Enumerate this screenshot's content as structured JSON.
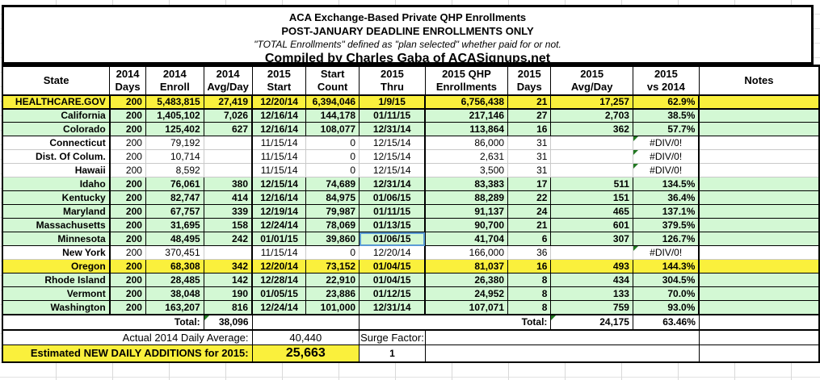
{
  "title": {
    "line1": "ACA Exchange-Based Private QHP Enrollments",
    "line2": "POST-JANUARY DEADLINE ENROLLMENTS ONLY",
    "line3": "\"TOTAL Enrollments\" defined as \"plan selected\" whether paid for or not.",
    "line4": "Compiled by Charles Gaba of ACASignups.net"
  },
  "colors": {
    "row_yellow": "#FAF03C",
    "row_green": "#D3F8D4",
    "error_indicator": "#217821",
    "selection_border": "#5B9BD5"
  },
  "table": {
    "columns": [
      {
        "key": "state",
        "l1": "State",
        "l2": ""
      },
      {
        "key": "2014-days",
        "l1": "2014",
        "l2": "Days"
      },
      {
        "key": "2014-enroll",
        "l1": "2014",
        "l2": "Enroll"
      },
      {
        "key": "2014-avg-day",
        "l1": "2014",
        "l2": "Avg/Day"
      },
      {
        "key": "2015-start",
        "l1": "2015",
        "l2": "Start"
      },
      {
        "key": "start-count",
        "l1": "Start",
        "l2": "Count"
      },
      {
        "key": "2015-thru",
        "l1": "2015",
        "l2": "Thru"
      },
      {
        "key": "2015-qhp-enrollments",
        "l1": "2015 QHP",
        "l2": "Enrollments"
      },
      {
        "key": "2015-days",
        "l1": "2015",
        "l2": "Days"
      },
      {
        "key": "2015-avg-day",
        "l1": "2015",
        "l2": "Avg/Day"
      },
      {
        "key": "2015-vs-2014",
        "l1": "2015",
        "l2": "vs 2014"
      },
      {
        "key": "notes",
        "l1": "Notes",
        "l2": ""
      }
    ],
    "rows": [
      {
        "state": "HEALTHCARE.GOV",
        "d14": "200",
        "e14": "5,483,815",
        "a14": "27,419",
        "s15": "12/20/14",
        "sc": "6,394,046",
        "t15": "1/9/15",
        "q15": "6,756,438",
        "d15": "21",
        "a15": "17,257",
        "vs": "62.9%",
        "notes": "",
        "style": "yellow",
        "pct_bold": false,
        "error": false,
        "selected": false
      },
      {
        "state": "California",
        "d14": "200",
        "e14": "1,405,102",
        "a14": "7,026",
        "s15": "12/16/14",
        "sc": "144,178",
        "t15": "01/11/15",
        "q15": "217,146",
        "d15": "27",
        "a15": "2,703",
        "vs": "38.5%",
        "notes": "",
        "style": "green",
        "pct_bold": true,
        "error": false,
        "selected": false
      },
      {
        "state": "Colorado",
        "d14": "200",
        "e14": "125,402",
        "a14": "627",
        "s15": "12/16/14",
        "sc": "108,077",
        "t15": "12/31/14",
        "q15": "113,864",
        "d15": "16",
        "a15": "362",
        "vs": "57.7%",
        "notes": "",
        "style": "green",
        "pct_bold": false,
        "error": false,
        "selected": false
      },
      {
        "state": "Connecticut",
        "d14": "200",
        "e14": "79,192",
        "a14": "",
        "s15": "11/15/14",
        "sc": "0",
        "t15": "12/15/14",
        "q15": "86,000",
        "d15": "31",
        "a15": "",
        "vs": "#DIV/0!",
        "notes": "",
        "style": "white",
        "pct_bold": false,
        "error": true,
        "selected": false
      },
      {
        "state": "Dist. Of Colum.",
        "d14": "200",
        "e14": "10,714",
        "a14": "",
        "s15": "11/15/14",
        "sc": "0",
        "t15": "12/15/14",
        "q15": "2,631",
        "d15": "31",
        "a15": "",
        "vs": "#DIV/0!",
        "notes": "",
        "style": "white",
        "pct_bold": false,
        "error": true,
        "selected": false
      },
      {
        "state": "Hawaii",
        "d14": "200",
        "e14": "8,592",
        "a14": "",
        "s15": "11/15/14",
        "sc": "0",
        "t15": "12/15/14",
        "q15": "3,500",
        "d15": "31",
        "a15": "",
        "vs": "#DIV/0!",
        "notes": "",
        "style": "white",
        "pct_bold": false,
        "error": true,
        "selected": false
      },
      {
        "state": "Idaho",
        "d14": "200",
        "e14": "76,061",
        "a14": "380",
        "s15": "12/15/14",
        "sc": "74,689",
        "t15": "12/31/14",
        "q15": "83,383",
        "d15": "17",
        "a15": "511",
        "vs": "134.5%",
        "notes": "",
        "style": "green",
        "pct_bold": true,
        "error": false,
        "selected": false
      },
      {
        "state": "Kentucky",
        "d14": "200",
        "e14": "82,747",
        "a14": "414",
        "s15": "12/16/14",
        "sc": "84,975",
        "t15": "01/06/15",
        "q15": "88,289",
        "d15": "22",
        "a15": "151",
        "vs": "36.4%",
        "notes": "",
        "style": "green",
        "pct_bold": false,
        "error": false,
        "selected": false
      },
      {
        "state": "Maryland",
        "d14": "200",
        "e14": "67,757",
        "a14": "339",
        "s15": "12/19/14",
        "sc": "79,987",
        "t15": "01/11/15",
        "q15": "91,137",
        "d15": "24",
        "a15": "465",
        "vs": "137.1%",
        "notes": "",
        "style": "green",
        "pct_bold": false,
        "error": false,
        "selected": false
      },
      {
        "state": "Massachusetts",
        "d14": "200",
        "e14": "31,695",
        "a14": "158",
        "s15": "12/24/14",
        "sc": "78,069",
        "t15": "01/13/15",
        "q15": "90,700",
        "d15": "21",
        "a15": "601",
        "vs": "379.5%",
        "notes": "",
        "style": "green",
        "pct_bold": false,
        "error": false,
        "selected": false
      },
      {
        "state": "Minnesota",
        "d14": "200",
        "e14": "48,495",
        "a14": "242",
        "s15": "01/01/15",
        "sc": "39,860",
        "t15": "01/06/15",
        "q15": "41,704",
        "d15": "6",
        "a15": "307",
        "vs": "126.7%",
        "notes": "",
        "style": "green",
        "pct_bold": false,
        "error": false,
        "selected": true
      },
      {
        "state": "New York",
        "d14": "200",
        "e14": "370,451",
        "a14": "",
        "s15": "11/15/14",
        "sc": "0",
        "t15": "12/20/14",
        "q15": "166,000",
        "d15": "36",
        "a15": "",
        "vs": "#DIV/0!",
        "notes": "",
        "style": "white",
        "pct_bold": false,
        "error": true,
        "selected": false
      },
      {
        "state": "Oregon",
        "d14": "200",
        "e14": "68,308",
        "a14": "342",
        "s15": "12/20/14",
        "sc": "73,152",
        "t15": "01/04/15",
        "q15": "81,037",
        "d15": "16",
        "a15": "493",
        "vs": "144.3%",
        "notes": "",
        "style": "yellow",
        "pct_bold": true,
        "error": false,
        "selected": false
      },
      {
        "state": "Rhode Island",
        "d14": "200",
        "e14": "28,485",
        "a14": "142",
        "s15": "12/28/14",
        "sc": "22,910",
        "t15": "01/04/15",
        "q15": "26,380",
        "d15": "8",
        "a15": "434",
        "vs": "304.5%",
        "notes": "",
        "style": "green",
        "pct_bold": true,
        "error": false,
        "selected": false
      },
      {
        "state": "Vermont",
        "d14": "200",
        "e14": "38,048",
        "a14": "190",
        "s15": "01/05/15",
        "sc": "23,886",
        "t15": "01/12/15",
        "q15": "24,952",
        "d15": "8",
        "a15": "133",
        "vs": "70.0%",
        "notes": "",
        "style": "green",
        "pct_bold": true,
        "error": false,
        "selected": false
      },
      {
        "state": "Washington",
        "d14": "200",
        "e14": "163,207",
        "a14": "816",
        "s15": "12/24/14",
        "sc": "101,000",
        "t15": "12/31/14",
        "q15": "107,071",
        "d15": "8",
        "a15": "759",
        "vs": "93.0%",
        "notes": "",
        "style": "green",
        "pct_bold": true,
        "error": false,
        "selected": false
      }
    ],
    "totals": {
      "label_left": "Total:",
      "avg_2014": "38,096",
      "label_right": "Total:",
      "avg_2015": "24,175",
      "vs_2014": "63.46%"
    },
    "footer": {
      "daily_avg_label": "Actual 2014 Daily Average:",
      "daily_avg_value": "40,440",
      "surge_label": "Surge Factor:",
      "surge_value": "1",
      "estimated_label": "Estimated NEW DAILY ADDITIONS for 2015:",
      "estimated_value": "25,663"
    }
  }
}
